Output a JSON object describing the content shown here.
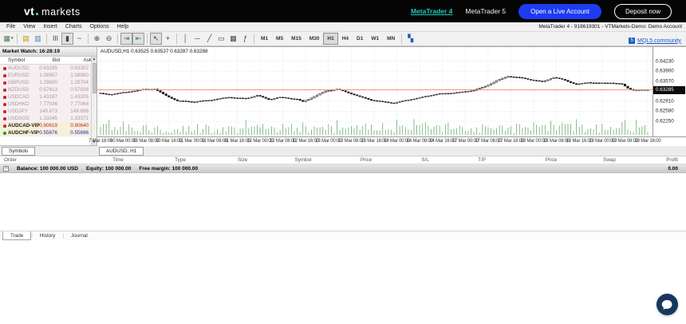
{
  "topbar": {
    "logo_vt": "vt",
    "logo_markets": "markets",
    "link_mt4": "MetaTrader 4",
    "link_mt5": "MetaTrader 5",
    "btn_live": "Open a Live Account",
    "btn_deposit": "Deposit now",
    "accent_teal": "#25c9b3",
    "accent_blue": "#1d3bf0"
  },
  "menubar": {
    "items": [
      "File",
      "View",
      "Insert",
      "Charts",
      "Options",
      "Help"
    ],
    "window_title": "MetaTrader 4 - 918619301 - VTMarkets-Demo: Demo Account"
  },
  "toolbar": {
    "icon_groups": [
      [
        {
          "name": "new-chart-icon",
          "glyph": "▦",
          "color": "#3f7d4f",
          "dropdown": true
        }
      ],
      [
        {
          "name": "profiles-icon",
          "glyph": "▤",
          "color": "#c99700"
        },
        {
          "name": "templates-icon",
          "glyph": "▥",
          "color": "#4a7dbf"
        }
      ],
      [
        {
          "name": "bar-chart-icon",
          "glyph": "ǀǀǀ",
          "color": "#444"
        },
        {
          "name": "candlestick-chart-icon",
          "glyph": "▮",
          "color": "#444",
          "pressed": true
        },
        {
          "name": "line-chart-icon",
          "glyph": "~",
          "color": "#444"
        }
      ],
      [
        {
          "name": "zoom-in-icon",
          "glyph": "⊕",
          "color": "#444"
        },
        {
          "name": "zoom-out-icon",
          "glyph": "⊖",
          "color": "#444"
        }
      ],
      [
        {
          "name": "auto-scroll-icon",
          "glyph": "⇥",
          "color": "#2e7d32",
          "pressed": true
        },
        {
          "name": "chart-shift-icon",
          "glyph": "⇤",
          "color": "#2e7d32",
          "pressed": true
        }
      ],
      [
        {
          "name": "cursor-icon",
          "glyph": "↖",
          "color": "#444",
          "pressed": true
        },
        {
          "name": "crosshair-icon",
          "glyph": "+",
          "color": "#444"
        }
      ],
      [
        {
          "name": "vertical-line-icon",
          "glyph": "│",
          "color": "#444"
        },
        {
          "name": "horizontal-line-icon",
          "glyph": "─",
          "color": "#444"
        },
        {
          "name": "trendline-icon",
          "glyph": "╱",
          "color": "#444"
        },
        {
          "name": "text-label-icon",
          "glyph": "▭",
          "color": "#444"
        },
        {
          "name": "fibonacci-icon",
          "glyph": "▦",
          "color": "#444"
        },
        {
          "name": "indicators-icon",
          "glyph": "ƒ",
          "color": "#444"
        }
      ]
    ],
    "timeframes": [
      "M1",
      "M5",
      "M15",
      "M30",
      "H1",
      "H4",
      "D1",
      "W1",
      "MN"
    ],
    "active_timeframe": "H1",
    "tile_windows_icon": {
      "name": "tile-windows-icon",
      "glyph": "▚",
      "color": "#2a5db0"
    },
    "mql5_link": "MQL5.community",
    "mql5_badge": "5"
  },
  "market_watch": {
    "title": "Market Watch: 16:28:19",
    "columns": {
      "symbol": "Symbol",
      "bid": "Bid",
      "ask": "Ask"
    },
    "rows": [
      {
        "dot": "red",
        "symbol": "AUDUSD",
        "bid": "0.63285",
        "ask": "0.63302",
        "style": "muted"
      },
      {
        "dot": "red",
        "symbol": "EURUSD",
        "bid": "1.08957",
        "ask": "1.08980",
        "style": "muted"
      },
      {
        "dot": "red",
        "symbol": "GBPUSD",
        "bid": "1.29690",
        "ask": "1.29704",
        "style": "muted"
      },
      {
        "dot": "red",
        "symbol": "NZDUSD",
        "bid": "0.57813",
        "ask": "0.57838",
        "style": "muted"
      },
      {
        "dot": "red",
        "symbol": "USDCAD",
        "bid": "1.43187",
        "ask": "1.43205",
        "style": "muted"
      },
      {
        "dot": "red",
        "symbol": "USDHKD",
        "bid": "7.77036",
        "ask": "7.77064",
        "style": "muted"
      },
      {
        "dot": "red",
        "symbol": "USDJPY",
        "bid": "149.873",
        "ask": "149.896",
        "style": "muted"
      },
      {
        "dot": "red",
        "symbol": "USDSGD",
        "bid": "1.33345",
        "ask": "1.33371",
        "style": "muted"
      },
      {
        "dot": "red",
        "symbol": "AUDCAD-VIP",
        "bid": "0.90619",
        "ask": "0.90640",
        "style": "sell"
      },
      {
        "dot": "green",
        "symbol": "AUDCHF-VIP",
        "bid": "0.55676",
        "ask": "0.55696",
        "style": "buy"
      }
    ],
    "tab": "Symbols"
  },
  "chart": {
    "info_text": "AUDUSD,H1  0.63525 0.63537 0.63287 0.63288",
    "tab": "AUDUSD, H1",
    "current_price": "0.63285"
  },
  "chart_data": {
    "type": "candlestick",
    "symbol": "AUDUSD",
    "timeframe": "H1",
    "ohlc": {
      "open": "0.63525",
      "high": "0.63537",
      "low": "0.63287",
      "close": "0.63288"
    },
    "current_price": 0.63285,
    "price_line_color": "#f2836f",
    "grid_color": "#dcdcdc",
    "candle_up_fill": "#ffffff",
    "candle_down_fill": "#1a1a1a",
    "volume_color": "#66ad66",
    "ylim": [
      0.621,
      0.6445
    ],
    "y_ticks": [
      0.6423,
      0.639,
      0.6357,
      0.6324,
      0.6291,
      0.6258,
      0.6225
    ],
    "y_tick_labels": [
      "0.64230",
      "0.63900",
      "0.63570",
      "0.63240",
      "0.62910",
      "0.62580",
      "0.62250"
    ],
    "x_labels": [
      "7 Mar 16:00",
      "10 Mar 00:00",
      "10 Mar 08:00",
      "10 Mar 16:00",
      "11 Mar 00:00",
      "11 Mar 08:00",
      "11 Mar 16:00",
      "12 Mar 00:00",
      "12 Mar 08:00",
      "12 Mar 16:00",
      "13 Mar 00:00",
      "13 Mar 08:00",
      "13 Mar 16:00",
      "14 Mar 00:00",
      "14 Mar 08:00",
      "14 Mar 16:00",
      "17 Mar 00:00",
      "17 Mar 08:00",
      "17 Mar 16:00",
      "18 Mar 00:00",
      "18 Mar 08:00",
      "18 Mar 16:00",
      "19 Mar 00:00",
      "19 Mar 08:00",
      "19 Mar 16:00"
    ],
    "candles_per_label": 8,
    "candle_count": 193,
    "price_path_anchors": [
      [
        0,
        0.6318
      ],
      [
        4,
        0.6312
      ],
      [
        10,
        0.632
      ],
      [
        16,
        0.633
      ],
      [
        20,
        0.6332
      ],
      [
        24,
        0.631
      ],
      [
        28,
        0.6292
      ],
      [
        34,
        0.6288
      ],
      [
        40,
        0.6295
      ],
      [
        46,
        0.6305
      ],
      [
        52,
        0.63
      ],
      [
        56,
        0.631
      ],
      [
        60,
        0.6296
      ],
      [
        64,
        0.6303
      ],
      [
        70,
        0.6298
      ],
      [
        72,
        0.629
      ],
      [
        76,
        0.6308
      ],
      [
        80,
        0.6325
      ],
      [
        84,
        0.633
      ],
      [
        88,
        0.6318
      ],
      [
        92,
        0.6305
      ],
      [
        96,
        0.6295
      ],
      [
        100,
        0.629
      ],
      [
        104,
        0.6286
      ],
      [
        108,
        0.6294
      ],
      [
        112,
        0.63
      ],
      [
        116,
        0.6308
      ],
      [
        120,
        0.6315
      ],
      [
        124,
        0.6318
      ],
      [
        128,
        0.6322
      ],
      [
        132,
        0.6328
      ],
      [
        136,
        0.634
      ],
      [
        140,
        0.6358
      ],
      [
        144,
        0.6372
      ],
      [
        148,
        0.6368
      ],
      [
        152,
        0.6362
      ],
      [
        156,
        0.6356
      ],
      [
        160,
        0.637
      ],
      [
        164,
        0.636
      ],
      [
        168,
        0.6345
      ],
      [
        172,
        0.6352
      ],
      [
        176,
        0.635
      ],
      [
        180,
        0.6352
      ],
      [
        184,
        0.6348
      ],
      [
        186,
        0.6335
      ],
      [
        188,
        0.6328
      ],
      [
        192,
        0.63285
      ]
    ]
  },
  "orders": {
    "columns": [
      "Order",
      "Time",
      "Type",
      "Size",
      "Symbol",
      "Price",
      "S/L",
      "T/P",
      "Price",
      "Swap",
      "Profit"
    ],
    "balance": "Balance: 100 000.00 USD",
    "equity": "Equity: 100 000.00",
    "free_margin": "Free margin: 100 000.00",
    "profit_value": "0.00"
  },
  "bottom_tabs": [
    {
      "label": "Trade",
      "active": true
    },
    {
      "label": "History",
      "active": false
    },
    {
      "label": "Journal",
      "active": false
    }
  ]
}
